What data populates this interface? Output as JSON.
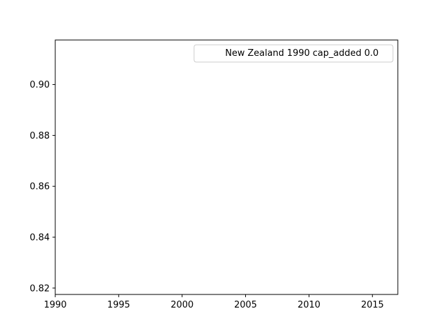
{
  "chart_data": {
    "type": "line",
    "title": "",
    "xlabel": "",
    "ylabel": "",
    "xlim": [
      1990,
      2017
    ],
    "ylim": [
      0.8175,
      0.9175
    ],
    "xticks": [
      1990,
      1995,
      2000,
      2005,
      2010,
      2015
    ],
    "xtick_labels": [
      "1990",
      "1995",
      "2000",
      "2005",
      "2010",
      "2015"
    ],
    "yticks": [
      0.82,
      0.84,
      0.86,
      0.88,
      0.9
    ],
    "ytick_labels": [
      "0.82",
      "0.84",
      "0.86",
      "0.88",
      "0.90"
    ],
    "grid": false,
    "legend_position": "top-right",
    "series": [
      {
        "name": "New Zealand 1990 cap_added 0.0",
        "x": [],
        "y": [],
        "color": "#1f77b4"
      }
    ]
  }
}
